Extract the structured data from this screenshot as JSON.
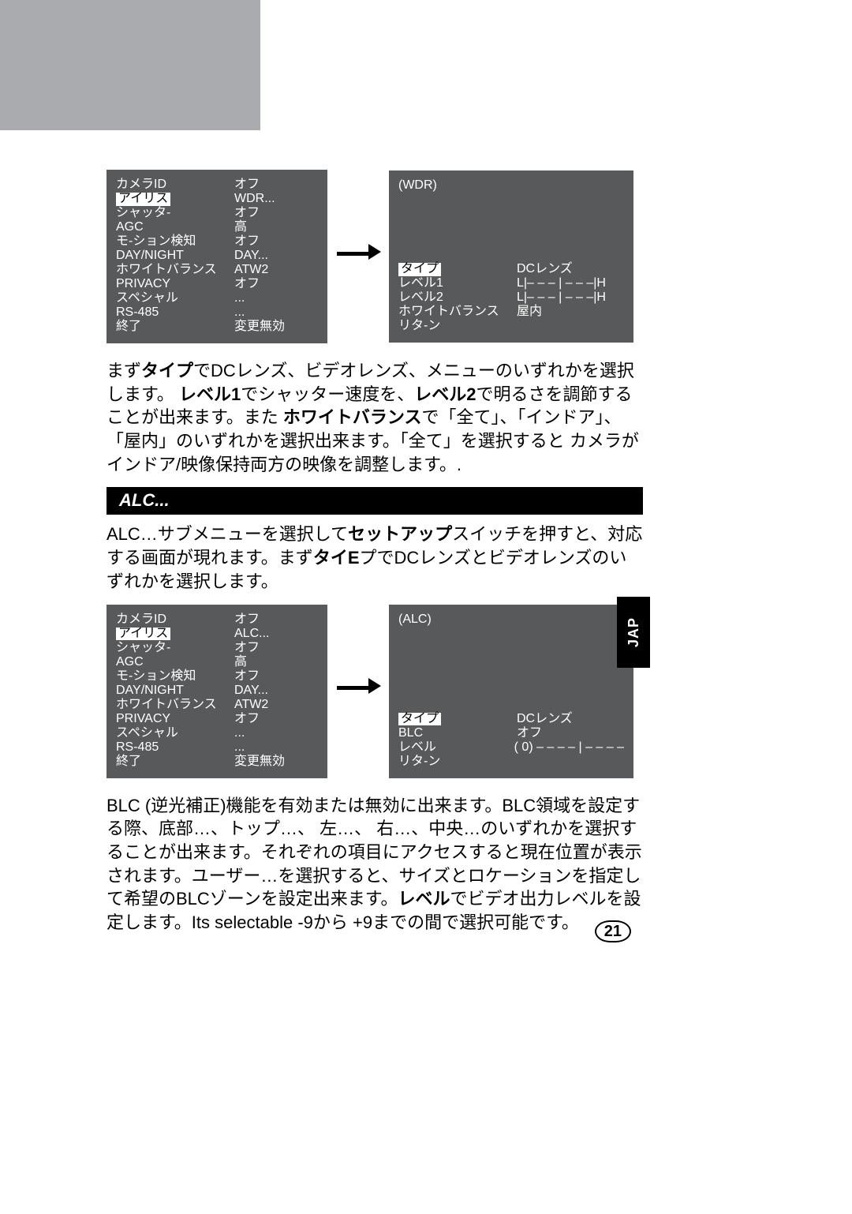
{
  "colors": {
    "menu_bg": "#58595b",
    "menu_fg": "#ffffff",
    "highlight_bg": "#ffffff",
    "highlight_fg": "#000000",
    "header_gray": "#a9abae"
  },
  "menu1_left": {
    "rows": [
      {
        "label": "カメラID",
        "value": "オフ"
      },
      {
        "label": "アイリス",
        "value": "WDR...",
        "highlight": true
      },
      {
        "label": "シャッタ-",
        "value": "オフ"
      },
      {
        "label": "AGC",
        "value": "高"
      },
      {
        "label": "モ-ション検知",
        "value": "オフ"
      },
      {
        "label": "DAY/NIGHT",
        "value": "DAY..."
      },
      {
        "label": "ホワイトバランス",
        "value": "ATW2"
      },
      {
        "label": "PRIVACY",
        "value": "オフ"
      },
      {
        "label": "スペシャル",
        "value": "..."
      },
      {
        "label": "RS-485",
        "value": "..."
      },
      {
        "label": "終了",
        "value": "変更無効"
      }
    ]
  },
  "menu1_right": {
    "title": "(WDR)",
    "rows": [
      {
        "label": "タイプ",
        "value": "DCレンズ",
        "highlight": true
      },
      {
        "label": "レベル1",
        "value": "L|– – – | – – –|H"
      },
      {
        "label": "レベル2",
        "value": "L|– – – | – – –|H"
      },
      {
        "label": "ホワイトバランス",
        "value": "屋内"
      },
      {
        "label": "リタ-ン",
        "value": ""
      }
    ]
  },
  "para1_parts": {
    "a": "まず",
    "b": "タイプ",
    "c": "でDCレンズ、ビデオレンズ、メニューのいずれかを選択します。",
    "d": "レベル1",
    "e": "でシャッター速度を、",
    "f": "レベル2",
    "g": "で明るさを調節することが出来ます。また ",
    "h": "ホワイトバランス",
    "i": "で「全て」、「インドア」、「屋内」のいずれかを選択出来ます。「全て」を選択すると カメラがインドア/映像保持両方の映像を調整します。."
  },
  "section_alc": "ALC...",
  "para2_parts": {
    "a": "ALC…サブメニューを選択して",
    "b": "セットアップ",
    "c": "スイッチを押すと、対応する画面が現れます。まず",
    "d": "タイE",
    "e": "プでDCレンズとビデオレンズのいずれかを選択します。"
  },
  "menu2_left": {
    "rows": [
      {
        "label": "カメラID",
        "value": "オフ"
      },
      {
        "label": "アイリス",
        "value": "ALC...",
        "highlight": true
      },
      {
        "label": "シャッタ-",
        "value": "オフ"
      },
      {
        "label": "AGC",
        "value": "高"
      },
      {
        "label": "モ-ション検知",
        "value": "オフ"
      },
      {
        "label": "DAY/NIGHT",
        "value": "DAY..."
      },
      {
        "label": "ホワイトバランス",
        "value": "ATW2"
      },
      {
        "label": "PRIVACY",
        "value": "オフ"
      },
      {
        "label": "スペシャル",
        "value": "..."
      },
      {
        "label": "RS-485",
        "value": "..."
      },
      {
        "label": "終了",
        "value": "変更無効"
      }
    ]
  },
  "menu2_right": {
    "title": "(ALC)",
    "rows": [
      {
        "label": "タイプ",
        "value": "DCレンズ",
        "highlight": true
      },
      {
        "label": "BLC",
        "value": "オフ"
      },
      {
        "label": "レベル",
        "value": "( 0) – – – – | – – – –"
      },
      {
        "label": "リタ-ン",
        "value": ""
      }
    ]
  },
  "para3_parts": {
    "a": "BLC (逆光補正)機能を有効または無効に出来ます。BLC領域を設定する際、底部…、トップ…、 左…、 右…、中央…のいずれかを選択することが出来ます。それぞれの項目にアクセスすると現在位置が表示されます。ユーザー…を選択すると、サイズとロケーションを指定して希望のBLCゾーンを設定出来ます。",
    "b": "レベル",
    "c": "でビデオ出力レベルを設定します。Its selectable -9から +9までの間で選択可能です。"
  },
  "side_tab": "JAP",
  "page_number": "21"
}
